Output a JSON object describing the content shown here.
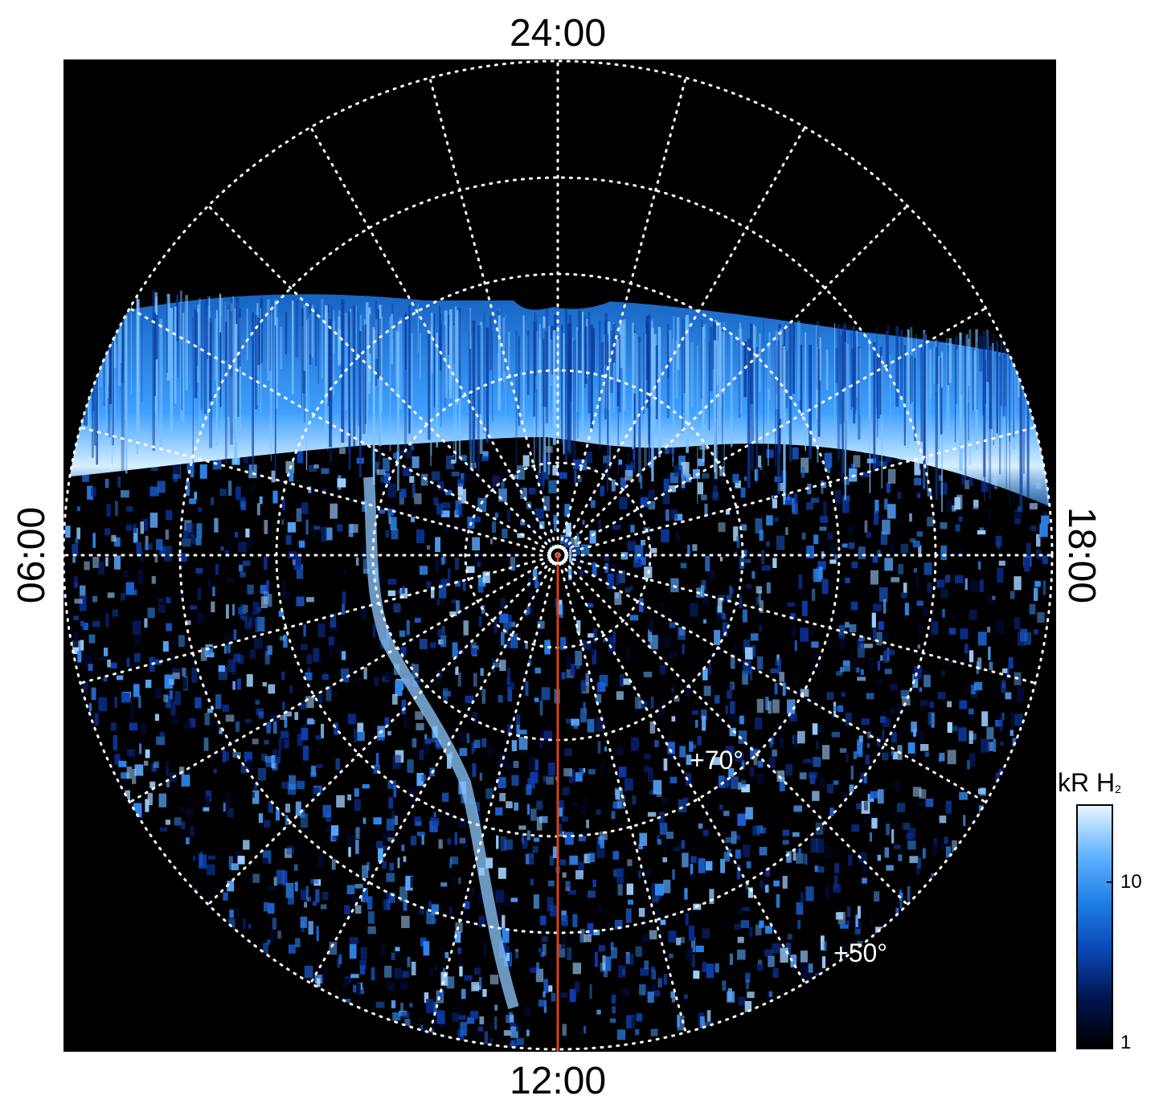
{
  "local_time_labels": {
    "top": "24:00",
    "bottom": "12:00",
    "left": "06:00",
    "right": "18:00"
  },
  "latitude_labels": {
    "inner": "+70°",
    "outer": "+50°"
  },
  "colorbar": {
    "title": "kR H",
    "title_subscript": "2",
    "tick_labels": [
      "10",
      "1"
    ],
    "colors": [
      "#000000",
      "#00134d",
      "#0a46b4",
      "#1e7ee6",
      "#64b4ff",
      "#e6f5ff"
    ]
  },
  "colors": {
    "background": "#000000",
    "grid": "#ffffff",
    "meridian_line": "#d8401a",
    "auroral_oval": "#4aa8ff"
  }
}
